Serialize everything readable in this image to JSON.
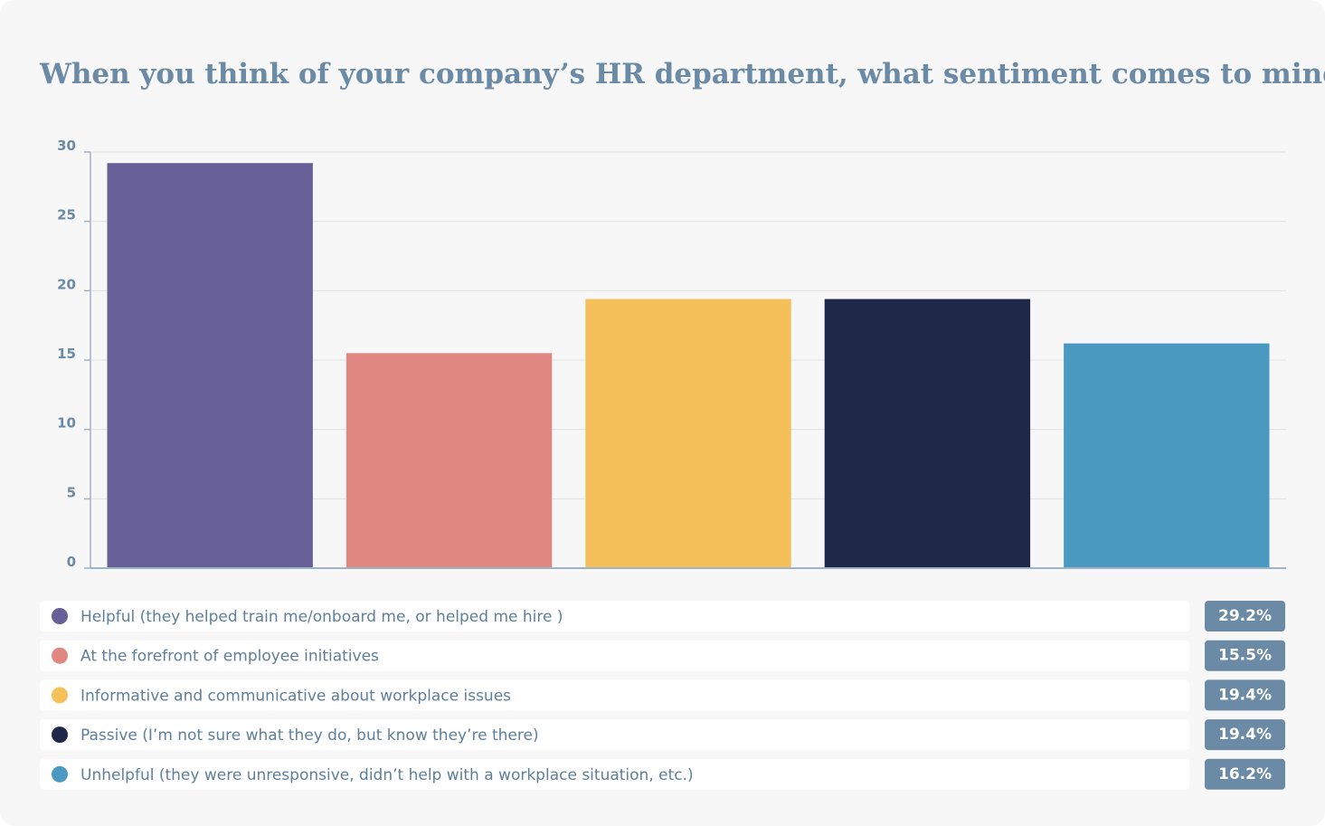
{
  "chart_data": {
    "type": "bar",
    "title": "When you think of your company’s HR department, what sentiment comes to mind?",
    "categories": [
      "Helpful (they helped train me/onboard me, or helped me hire )",
      "At the forefront of employee initiatives",
      "Informative and communicative about workplace issues",
      "Passive (I’m not sure what they do, but know they’re there)",
      "Unhelpful (they were unresponsive, didn’t help with a workplace situation, etc.)"
    ],
    "values": [
      29.2,
      15.5,
      19.4,
      19.4,
      16.2
    ],
    "value_labels": [
      "29.2%",
      "15.5%",
      "19.4%",
      "19.4%",
      "16.2%"
    ],
    "colors": [
      "#675f97",
      "#e08782",
      "#f5c05a",
      "#1e2848",
      "#4a99c0"
    ],
    "ylim": [
      0,
      30
    ],
    "yticks": [
      0,
      5,
      10,
      15,
      20,
      25,
      30
    ],
    "grid": true
  }
}
